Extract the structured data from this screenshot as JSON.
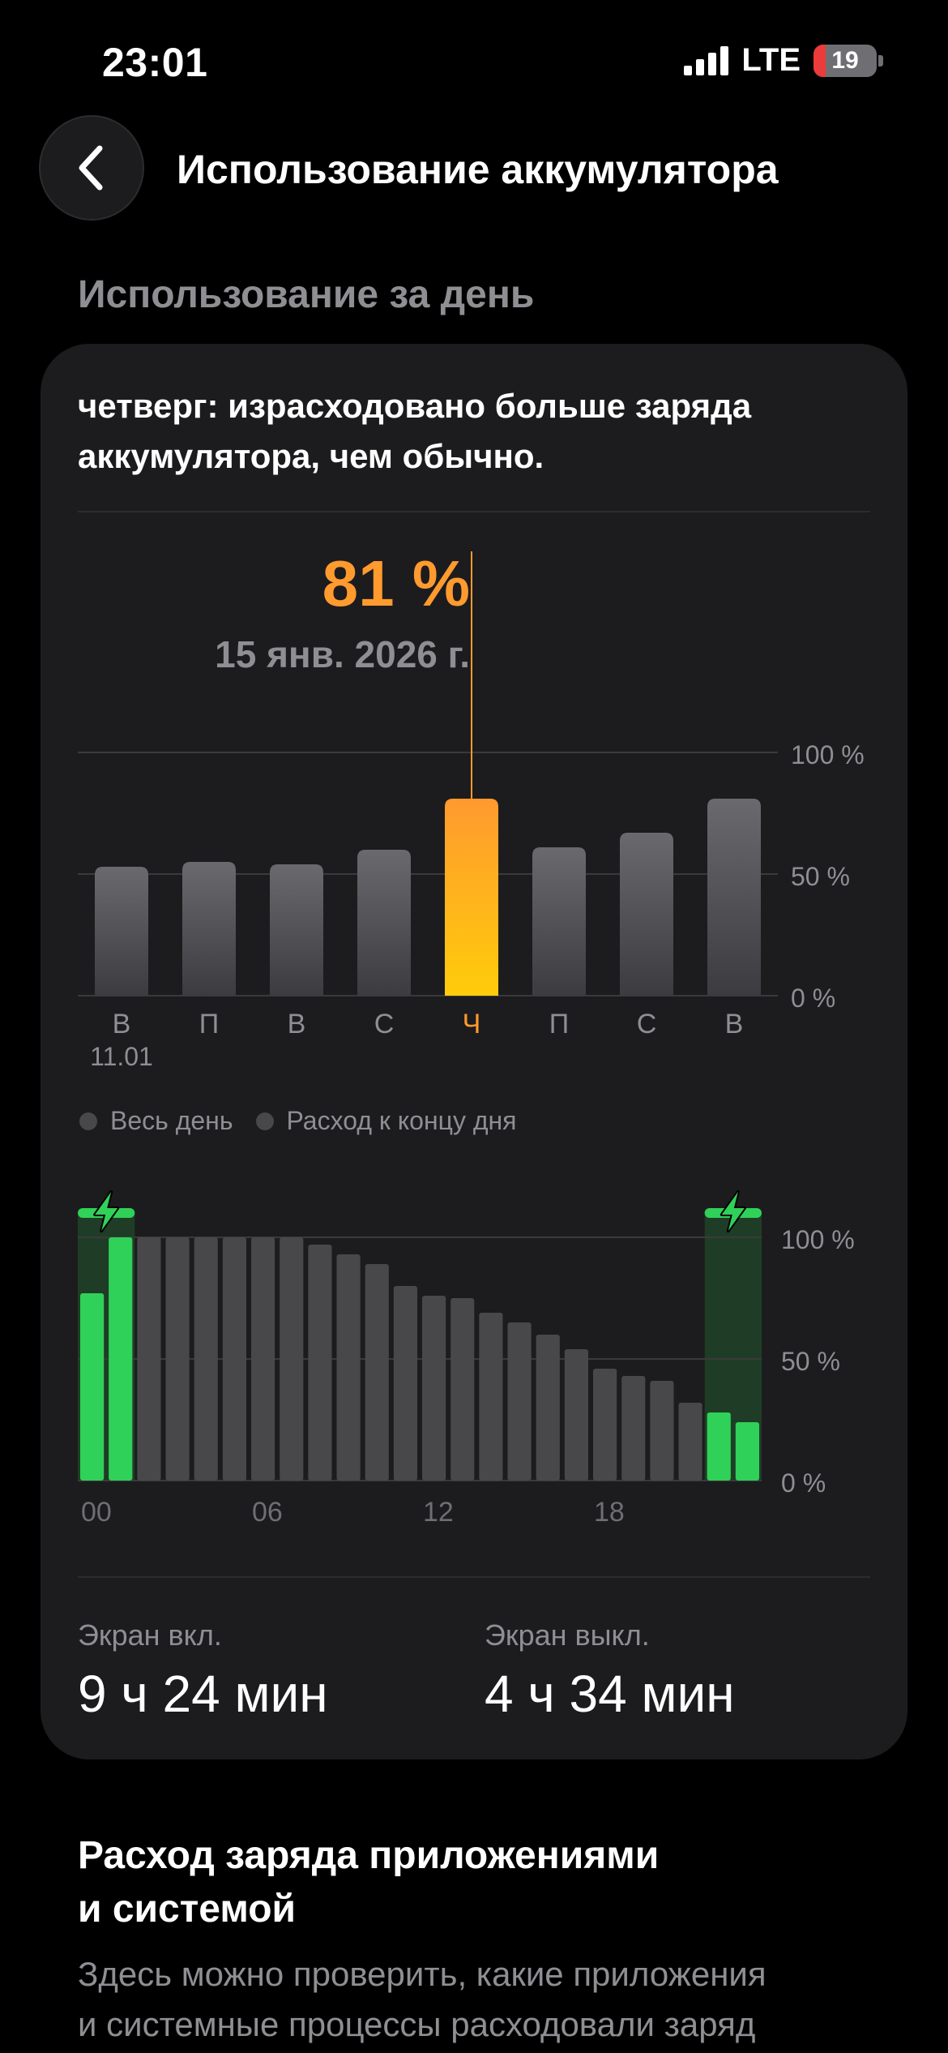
{
  "status_bar": {
    "time": "23:01",
    "network": "LTE",
    "battery_level": "19",
    "battery_fraction": 0.19,
    "signal_icon": "signal-bars-icon",
    "battery_color": "#eb3b3b"
  },
  "header": {
    "title": "Использование аккумулятора",
    "back_icon": "chevron-left-icon"
  },
  "day_usage": {
    "section_label": "Использование за день",
    "message": "четверг: израсходовано больше заряда аккумулятора, чем обычно.",
    "selected_value": "81 %",
    "selected_date": "15 янв. 2026 г."
  },
  "chart_data": [
    {
      "type": "bar",
      "categories": [
        "В",
        "П",
        "В",
        "С",
        "Ч",
        "П",
        "С",
        "В"
      ],
      "first_category_date": "11.01",
      "values": [
        53,
        55,
        54,
        60,
        81,
        61,
        67,
        81
      ],
      "selected_index": 4,
      "y_ticks": [
        "100 %",
        "50 %",
        "0 %"
      ],
      "ylim": [
        0,
        100
      ],
      "colors": {
        "default": "#5a5a5e",
        "selected_top": "#ff9a2f",
        "selected_bottom": "#ffcc0a",
        "selected_label": "#ff9a2f"
      }
    },
    {
      "type": "bar",
      "x_ticks": [
        "00",
        "06",
        "12",
        "18"
      ],
      "y_ticks": [
        "100 %",
        "50 %",
        "0 %"
      ],
      "ylim": [
        0,
        100
      ],
      "values": [
        77,
        100,
        100,
        100,
        100,
        100,
        100,
        100,
        97,
        93,
        89,
        80,
        76,
        75,
        69,
        65,
        60,
        54,
        46,
        43,
        41,
        32,
        28,
        24
      ],
      "charging": [
        true,
        true,
        false,
        false,
        false,
        false,
        false,
        false,
        false,
        false,
        false,
        false,
        false,
        false,
        false,
        false,
        false,
        false,
        false,
        false,
        false,
        false,
        true,
        true
      ],
      "charging_icon": "lightning-bolt-icon",
      "colors": {
        "normal": "#48484a",
        "charging": "#30d158",
        "charging_band": "#1f3d26"
      }
    }
  ],
  "legend": {
    "items": [
      "Весь день",
      "Расход к концу дня"
    ]
  },
  "stats": {
    "screen_on_label": "Экран вкл.",
    "screen_on_value": "9 ч 24 мин",
    "screen_off_label": "Экран выкл.",
    "screen_off_value": "4 ч 34 мин"
  },
  "apps_section": {
    "title_line1": "Расход заряда приложениями",
    "title_line2": "и системой",
    "desc_line1": "Здесь можно проверить, какие приложения",
    "desc_line2": "и системные процессы расходовали заряд"
  }
}
